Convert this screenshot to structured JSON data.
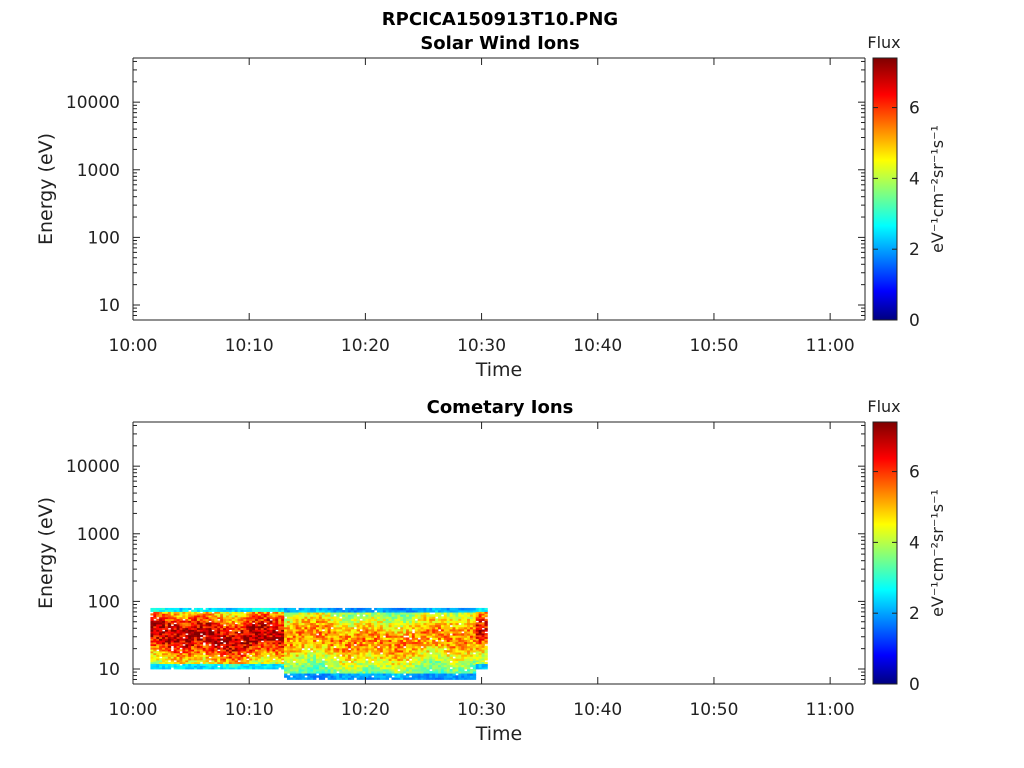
{
  "figure_title": "RPCICA150913T10.PNG",
  "chart_data": [
    {
      "type": "heatmap",
      "title": "Solar Wind Ions",
      "xlabel": "Time",
      "ylabel": "Energy (eV)",
      "x_ticks": [
        "10:00",
        "10:10",
        "10:20",
        "10:30",
        "10:40",
        "10:50",
        "11:00"
      ],
      "x_range_minutes": [
        0,
        63
      ],
      "y_scale": "log",
      "y_ticks": [
        "10",
        "100",
        "1000",
        "10000"
      ],
      "y_range": [
        6,
        45000
      ],
      "colorbar": {
        "label": "Flux",
        "units": "eV⁻¹cm⁻²sr⁻¹s⁻¹",
        "ticks": [
          "0",
          "2",
          "4",
          "6"
        ],
        "range": [
          0,
          7.4
        ],
        "colormap": "jet"
      },
      "data": []
    },
    {
      "type": "heatmap",
      "title": "Cometary Ions",
      "xlabel": "Time",
      "ylabel": "Energy (eV)",
      "x_ticks": [
        "10:00",
        "10:10",
        "10:20",
        "10:30",
        "10:40",
        "10:50",
        "11:00"
      ],
      "x_range_minutes": [
        0,
        63
      ],
      "y_scale": "log",
      "y_ticks": [
        "10",
        "100",
        "1000",
        "10000"
      ],
      "y_range": [
        6,
        45000
      ],
      "colorbar": {
        "label": "Flux",
        "units": "eV⁻¹cm⁻²sr⁻¹s⁻¹",
        "ticks": [
          "0",
          "2",
          "4",
          "6"
        ],
        "range": [
          0,
          7.4
        ],
        "colormap": "jet"
      },
      "data": [
        {
          "t_start_min": 1.5,
          "t_end_min": 13,
          "e_min": 10,
          "e_max": 80,
          "flux_peak": 7.0
        },
        {
          "t_start_min": 13,
          "t_end_min": 29.5,
          "e_min": 7,
          "e_max": 80,
          "flux_peak": 5.5
        },
        {
          "t_start_min": 29.5,
          "t_end_min": 30.5,
          "e_min": 10,
          "e_max": 80,
          "flux_peak": 6.5
        }
      ]
    }
  ]
}
